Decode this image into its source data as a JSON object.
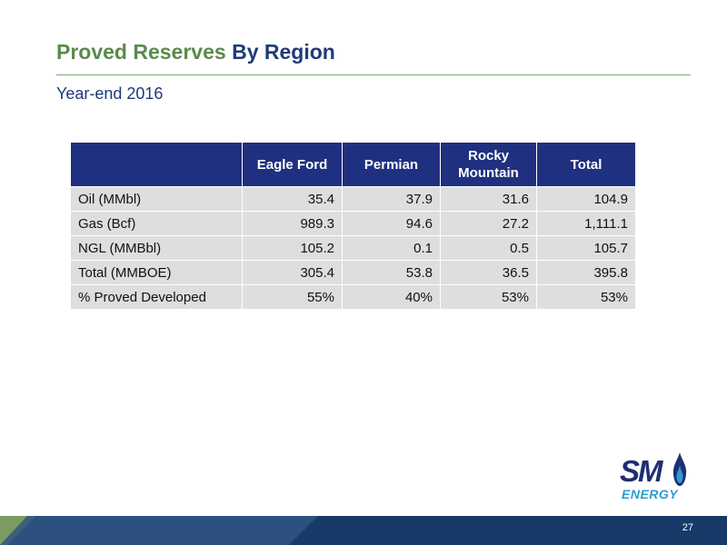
{
  "header": {
    "title_part1": "Proved Reserves",
    "title_part2": "By Region",
    "subtitle": "Year-end 2016"
  },
  "table": {
    "columns": [
      "",
      "Eagle Ford",
      "Permian",
      "Rocky Mountain",
      "Total"
    ],
    "rows": [
      {
        "label": "Oil (MMbl)",
        "values": [
          "35.4",
          "37.9",
          "31.6",
          "104.9"
        ]
      },
      {
        "label": "Gas (Bcf)",
        "values": [
          "989.3",
          "94.6",
          "27.2",
          "1,111.1"
        ]
      },
      {
        "label": "NGL (MMBbl)",
        "values": [
          "105.2",
          "0.1",
          "0.5",
          "105.7"
        ]
      },
      {
        "label": "Total (MMBOE)",
        "values": [
          "305.4",
          "53.8",
          "36.5",
          "395.8"
        ]
      },
      {
        "label": "% Proved Developed",
        "values": [
          "55%",
          "40%",
          "53%",
          "53%"
        ]
      }
    ]
  },
  "logo": {
    "mark": "SM",
    "word": "ENERGY",
    "icon": "flame-icon"
  },
  "footer": {
    "page_number": "27"
  },
  "colors": {
    "title_green": "#5b8a4d",
    "title_navy": "#1f3a7a",
    "table_header": "#1f3080",
    "table_cell": "#dedede",
    "footer_band": "#1d3f6e",
    "footer_green": "#7e9a63"
  }
}
